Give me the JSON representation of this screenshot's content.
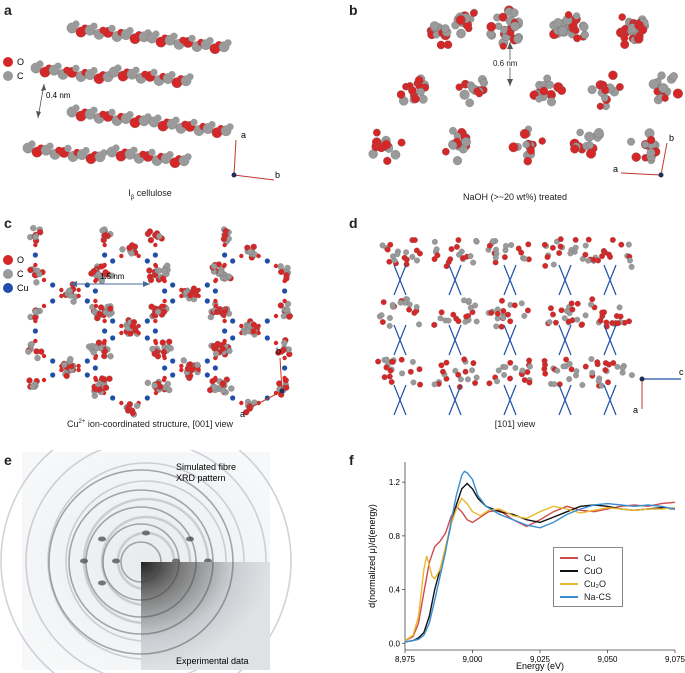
{
  "panels": {
    "a": {
      "label": "a",
      "legend": [
        {
          "symbol": "O",
          "color": "#d62728"
        },
        {
          "symbol": "C",
          "color": "#9a9a9a"
        }
      ],
      "distance": "0.4 nm",
      "caption_main": "I",
      "caption_sub": "β",
      "caption_rest": " cellulose",
      "axes": [
        "a",
        "b"
      ]
    },
    "b": {
      "label": "b",
      "distance": "0.6 nm",
      "caption": "NaOH (>~20 wt%) treated",
      "axes": [
        "a",
        "b"
      ]
    },
    "c": {
      "label": "c",
      "legend": [
        {
          "symbol": "O",
          "color": "#d62728"
        },
        {
          "symbol": "C",
          "color": "#9a9a9a"
        },
        {
          "symbol": "Cu",
          "color": "#1f4fa8"
        }
      ],
      "distance": "1.5 nm",
      "caption_main": "Cu",
      "caption_sup": "2+",
      "caption_rest": " ion-coordinated structure, [001] view",
      "axes": [
        "a",
        "b"
      ]
    },
    "d": {
      "label": "d",
      "caption": "[101] view",
      "axes": [
        "a",
        "c"
      ]
    },
    "e": {
      "label": "e",
      "sim_label_1": "Simulated fibre",
      "sim_label_2": "XRD pattern",
      "exp_label": "Experimental data"
    },
    "f": {
      "label": "f"
    }
  },
  "chart_data": {
    "type": "line",
    "xlabel": "Energy (eV)",
    "ylabel": "d(normalized μ)/d(energy)",
    "xlim": [
      8975,
      9075
    ],
    "ylim": [
      -0.05,
      1.35
    ],
    "xticks": [
      "8,975",
      "9,000",
      "9,025",
      "9,050",
      "9,075"
    ],
    "yticks": [
      "0.0",
      "0.4",
      "0.8",
      "1.2"
    ],
    "legend_position": "inside-lower-right",
    "series": [
      {
        "name": "Cu",
        "color": "#d04a4a",
        "x": [
          8975,
          8978,
          8980,
          8982,
          8984,
          8986,
          8988,
          8990,
          8992,
          8994,
          8996,
          8998,
          9000,
          9003,
          9006,
          9010,
          9015,
          9020,
          9025,
          9030,
          9035,
          9040,
          9045,
          9050,
          9055,
          9060,
          9065,
          9070,
          9075
        ],
        "y": [
          0.02,
          0.05,
          0.15,
          0.38,
          0.6,
          0.72,
          0.76,
          0.82,
          0.94,
          1.02,
          0.98,
          0.92,
          0.9,
          0.94,
          0.98,
          0.99,
          0.92,
          0.87,
          0.92,
          0.98,
          1.02,
          0.99,
          0.98,
          1.0,
          1.02,
          1.03,
          1.02,
          1.04,
          1.05
        ]
      },
      {
        "name": "CuO",
        "color": "#111111",
        "x": [
          8975,
          8978,
          8980,
          8982,
          8984,
          8986,
          8988,
          8990,
          8992,
          8994,
          8996,
          8998,
          9000,
          9002,
          9005,
          9010,
          9015,
          9020,
          9025,
          9030,
          9035,
          9040,
          9045,
          9050,
          9055,
          9060,
          9065,
          9070,
          9075
        ],
        "y": [
          0.01,
          0.02,
          0.04,
          0.08,
          0.2,
          0.4,
          0.55,
          0.7,
          0.88,
          1.03,
          1.15,
          1.19,
          1.15,
          1.08,
          1.02,
          0.98,
          0.96,
          0.92,
          0.9,
          0.94,
          0.98,
          1.02,
          1.03,
          1.02,
          1.0,
          0.99,
          1.0,
          1.01,
          1.0
        ]
      },
      {
        "name": "Cu₂O",
        "color": "#e8b830",
        "x": [
          8975,
          8978,
          8980,
          8982,
          8983,
          8984,
          8985,
          8986,
          8988,
          8990,
          8992,
          8994,
          8996,
          8998,
          9000,
          9003,
          9006,
          9010,
          9015,
          9020,
          9025,
          9030,
          9035,
          9040,
          9045,
          9050,
          9055,
          9060,
          9065,
          9070,
          9075
        ],
        "y": [
          0.02,
          0.06,
          0.2,
          0.55,
          0.65,
          0.58,
          0.5,
          0.48,
          0.55,
          0.72,
          0.88,
          1.0,
          1.08,
          1.04,
          0.98,
          0.95,
          0.99,
          1.0,
          0.95,
          0.93,
          0.98,
          1.02,
          1.0,
          0.97,
          0.99,
          1.01,
          1.0,
          0.99,
          1.0,
          1.0,
          1.01
        ]
      },
      {
        "name": "Na-CS",
        "color": "#3a8ed0",
        "x": [
          8975,
          8978,
          8980,
          8982,
          8984,
          8986,
          8988,
          8990,
          8992,
          8994,
          8996,
          8997,
          8998,
          9000,
          9002,
          9005,
          9010,
          9015,
          9020,
          9025,
          9030,
          9035,
          9040,
          9045,
          9050,
          9055,
          9060,
          9065,
          9070,
          9075
        ],
        "y": [
          0.01,
          0.02,
          0.03,
          0.06,
          0.15,
          0.32,
          0.5,
          0.68,
          0.9,
          1.1,
          1.25,
          1.28,
          1.27,
          1.22,
          1.1,
          1.02,
          0.96,
          0.92,
          0.88,
          0.86,
          0.9,
          0.96,
          1.0,
          1.03,
          1.04,
          1.03,
          1.02,
          1.03,
          1.02,
          1.0
        ]
      }
    ]
  }
}
